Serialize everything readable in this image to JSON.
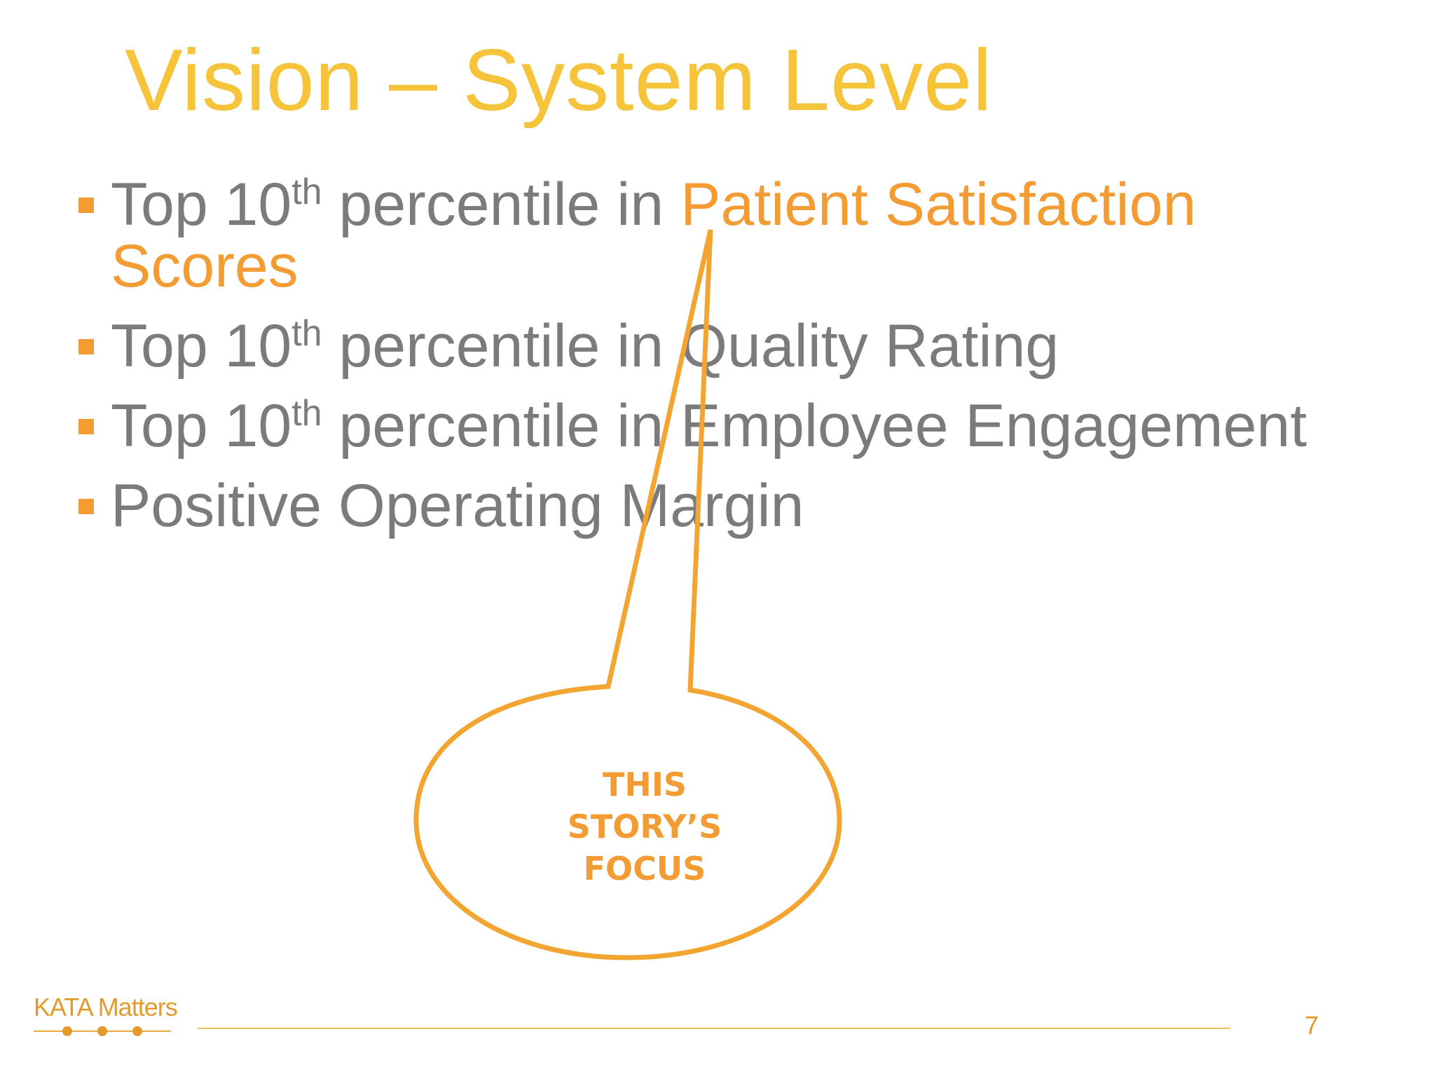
{
  "slide": {
    "title": "Vision – System Level",
    "bullets": [
      {
        "prefix": "Top 10",
        "sup": "th",
        "middle": " percentile in ",
        "highlight_line1": "Patient Satisfaction",
        "highlight_line2": "Scores"
      },
      {
        "prefix": "Top 10",
        "sup": "th",
        "middle": " percentile in Quality Rating"
      },
      {
        "prefix": "Top 10",
        "sup": "th",
        "middle": " percentile in Employee Engagement"
      },
      {
        "text": "Positive Operating Margin"
      }
    ],
    "callout": {
      "line1": "THIS",
      "line2": "STORY’S",
      "line3": "FOCUS"
    },
    "footer": {
      "logo_text": "KATA Matters",
      "page_number": "7"
    }
  },
  "colors": {
    "title": "#F6C43A",
    "accent": "#F39C33",
    "body_text": "#7b7b7b",
    "background": "#ffffff"
  }
}
